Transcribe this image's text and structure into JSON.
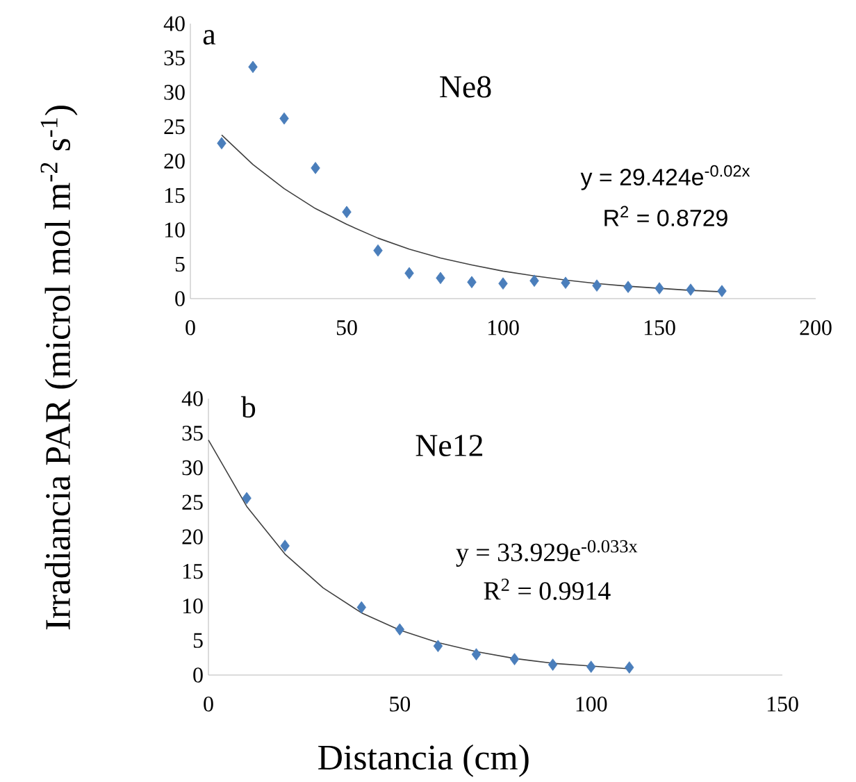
{
  "chart_data": [
    {
      "type": "scatter",
      "title": "Ne8",
      "ylabel": "Irradiancia PAR (microl mol m$^{-2}$ s$^{-1}$)",
      "annotations": [
        "a",
        "y = 29.424e$^{-0.02x}$",
        "R$^{2}$ = 0.8729"
      ],
      "xlim": [
        0,
        200
      ],
      "xticks": [
        0,
        50,
        100,
        150,
        200
      ],
      "ylim": [
        0,
        40
      ],
      "yticks": [
        0,
        5,
        10,
        15,
        20,
        25,
        30,
        35,
        40
      ],
      "marker": "diamond",
      "series": [
        {
          "color": "#4a7ebb",
          "x": [
            10,
            20,
            30,
            40,
            50,
            60,
            70,
            80,
            90,
            100,
            110,
            120,
            130,
            140,
            150,
            160,
            170
          ],
          "values": [
            22.6,
            33.7,
            26.2,
            19.0,
            12.6,
            7.0,
            3.7,
            3.0,
            2.4,
            2.2,
            2.6,
            2.3,
            1.9,
            1.7,
            1.5,
            1.3,
            1.1
          ]
        },
        {
          "type": "line",
          "color": "#404040",
          "marker": "none",
          "x": [
            10,
            20,
            30,
            40,
            50,
            60,
            70,
            80,
            90,
            100,
            110,
            120,
            130,
            140,
            150,
            160,
            170
          ],
          "values": [
            23.8,
            19.5,
            16.0,
            13.1,
            10.8,
            8.8,
            7.2,
            5.9,
            4.9,
            4.0,
            3.3,
            2.7,
            2.2,
            1.8,
            1.5,
            1.2,
            1.0
          ]
        }
      ]
    },
    {
      "type": "scatter",
      "title": "Ne12",
      "xlabel": "Distancia (cm)",
      "annotations": [
        "b",
        "y = 33.929e$^{-0.033x}$",
        "R$^{2}$ = 0.9914"
      ],
      "xlim": [
        0,
        150
      ],
      "xticks": [
        0,
        50,
        100,
        150
      ],
      "ylim": [
        0,
        40
      ],
      "yticks": [
        0,
        5,
        10,
        15,
        20,
        25,
        30,
        35,
        40
      ],
      "marker": "diamond",
      "series": [
        {
          "color": "#4a7ebb",
          "x": [
            10,
            20,
            40,
            50,
            60,
            70,
            80,
            90,
            100,
            110
          ],
          "values": [
            25.6,
            18.7,
            9.8,
            6.6,
            4.2,
            3.0,
            2.3,
            1.5,
            1.2,
            1.1
          ]
        },
        {
          "type": "line",
          "color": "#404040",
          "marker": "none",
          "x": [
            0,
            10,
            20,
            30,
            40,
            50,
            60,
            70,
            80,
            90,
            100,
            110
          ],
          "values": [
            34.0,
            24.4,
            17.5,
            12.6,
            9.0,
            6.5,
            4.7,
            3.4,
            2.4,
            1.7,
            1.3,
            0.9
          ]
        }
      ]
    }
  ]
}
